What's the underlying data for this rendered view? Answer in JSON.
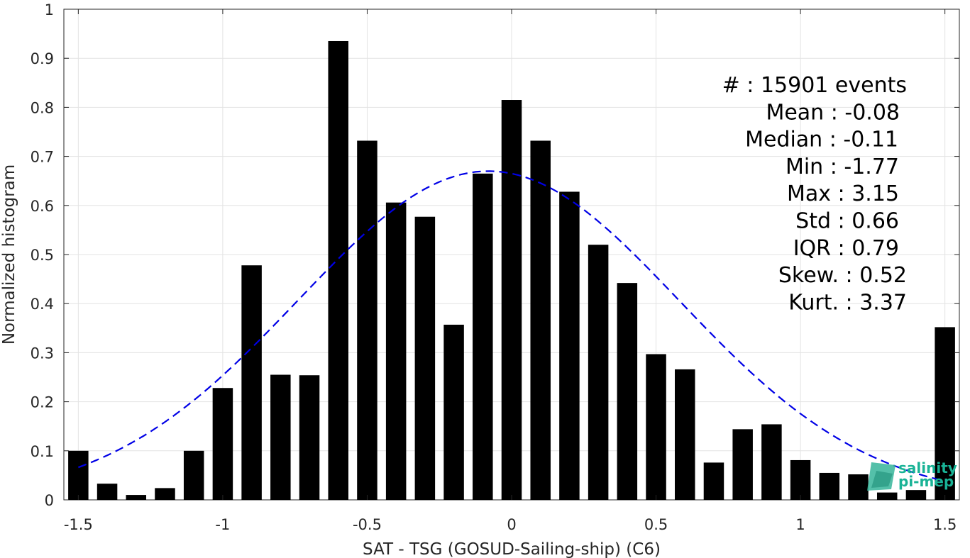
{
  "chart_data": {
    "type": "bar",
    "xlabel": "SAT - TSG (GOSUD-Sailing-ship) (C6)",
    "ylabel": "Normalized histogram",
    "xlim": [
      -1.55,
      1.55
    ],
    "ylim": [
      0,
      1
    ],
    "grid": true,
    "x_ticks": [
      -1.5,
      -1,
      -0.5,
      0,
      0.5,
      1,
      1.5
    ],
    "x_tick_labels": [
      "-1.5",
      "-1",
      "-0.5",
      "0",
      "0.5",
      "1",
      "1.5"
    ],
    "y_ticks": [
      0,
      0.1,
      0.2,
      0.3,
      0.4,
      0.5,
      0.6,
      0.7,
      0.8,
      0.9,
      1
    ],
    "y_tick_labels": [
      "0",
      "0.1",
      "0.2",
      "0.3",
      "0.4",
      "0.5",
      "0.6",
      "0.7",
      "0.8",
      "0.9",
      "1"
    ],
    "bar_width": 0.07,
    "bars": {
      "x": [
        -1.5,
        -1.4,
        -1.3,
        -1.2,
        -1.1,
        -1.0,
        -0.9,
        -0.8,
        -0.7,
        -0.6,
        -0.5,
        -0.4,
        -0.3,
        -0.2,
        -0.1,
        0.0,
        0.1,
        0.2,
        0.3,
        0.4,
        0.5,
        0.6,
        0.7,
        0.8,
        0.9,
        1.0,
        1.1,
        1.2,
        1.3,
        1.4,
        1.5
      ],
      "values": [
        0.1,
        0.033,
        0.01,
        0.024,
        0.1,
        0.228,
        0.478,
        0.255,
        0.254,
        0.935,
        0.732,
        0.606,
        0.577,
        0.357,
        0.665,
        0.815,
        0.732,
        0.628,
        0.52,
        0.442,
        0.297,
        0.266,
        0.076,
        0.144,
        0.154,
        0.081,
        0.055,
        0.052,
        0.015,
        0.02,
        0.352
      ],
      "color": "#000000"
    },
    "fit_curve": {
      "style": "dashed",
      "color": "#0000e6",
      "mean": -0.08,
      "std": 0.66,
      "peak": 0.67,
      "x_range": [
        -1.5,
        1.5
      ]
    },
    "stats": [
      "#  : 15901 events",
      "Mean : -0.08",
      "Median : -0.11",
      "Min : -1.77",
      "Max : 3.15",
      "Std : 0.66",
      "IQR : 0.79",
      "Skew. : 0.52",
      "Kurt. : 3.37"
    ]
  },
  "logo": {
    "line1": "salinity",
    "line2": "pi-mep"
  }
}
